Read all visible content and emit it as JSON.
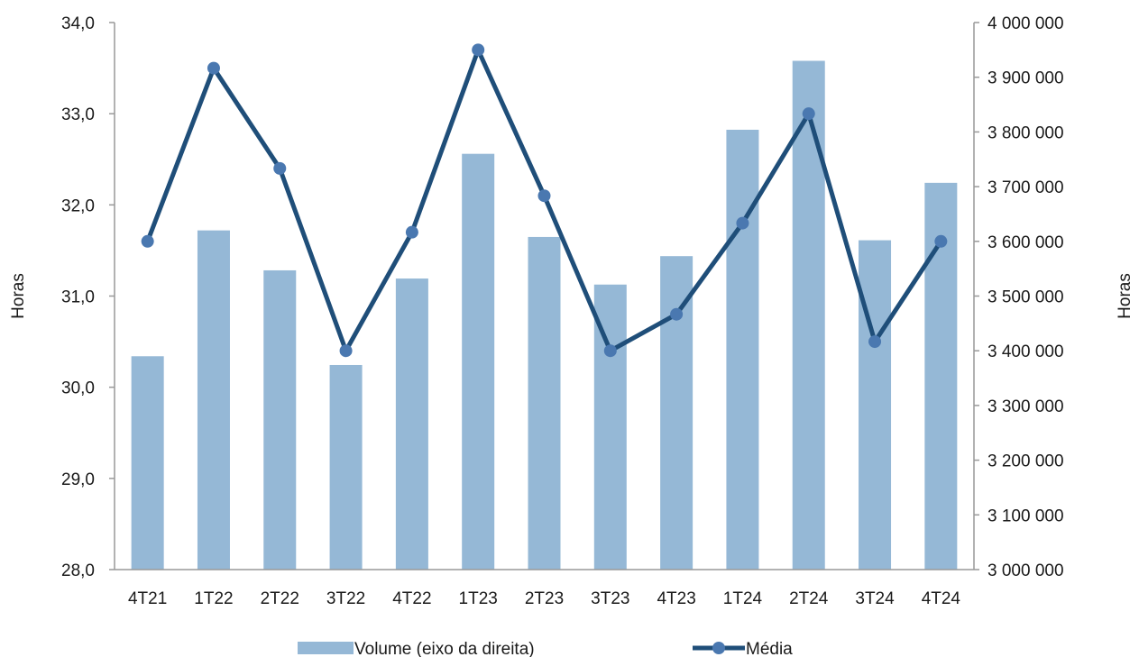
{
  "chart_data": {
    "type": "bar+line",
    "categories": [
      "4T21",
      "1T22",
      "2T22",
      "3T22",
      "4T22",
      "1T23",
      "2T23",
      "3T23",
      "4T23",
      "1T24",
      "2T24",
      "3T24",
      "4T24"
    ],
    "series": [
      {
        "name": "Volume (eixo da direita)",
        "type": "bar",
        "axis": "right",
        "color": "#95b8d6",
        "values": [
          3390000,
          3620000,
          3547000,
          3374000,
          3532000,
          3760000,
          3608000,
          3521000,
          3573000,
          3804000,
          3930000,
          3602000,
          3707000
        ]
      },
      {
        "name": "Média",
        "type": "line",
        "axis": "left",
        "color": "#1f4e79",
        "values": [
          31.6,
          33.5,
          32.4,
          30.4,
          31.7,
          33.7,
          32.1,
          30.4,
          30.8,
          31.8,
          33.0,
          30.5,
          31.6
        ]
      }
    ],
    "left_axis": {
      "label": "Horas",
      "min": 28,
      "max": 34,
      "ticks": [
        "28,0",
        "29,0",
        "30,0",
        "31,0",
        "32,0",
        "33,0",
        "34,0"
      ]
    },
    "right_axis": {
      "label": "Horas",
      "min": 3000000,
      "max": 4000000,
      "ticks": [
        "3 000 000",
        "3 100 000",
        "3 200 000",
        "3 300 000",
        "3 400 000",
        "3 500 000",
        "3 600 000",
        "3 700 000",
        "3 800 000",
        "3 900 000",
        "4 000 000"
      ]
    },
    "grid": false,
    "legend_position": "bottom"
  }
}
